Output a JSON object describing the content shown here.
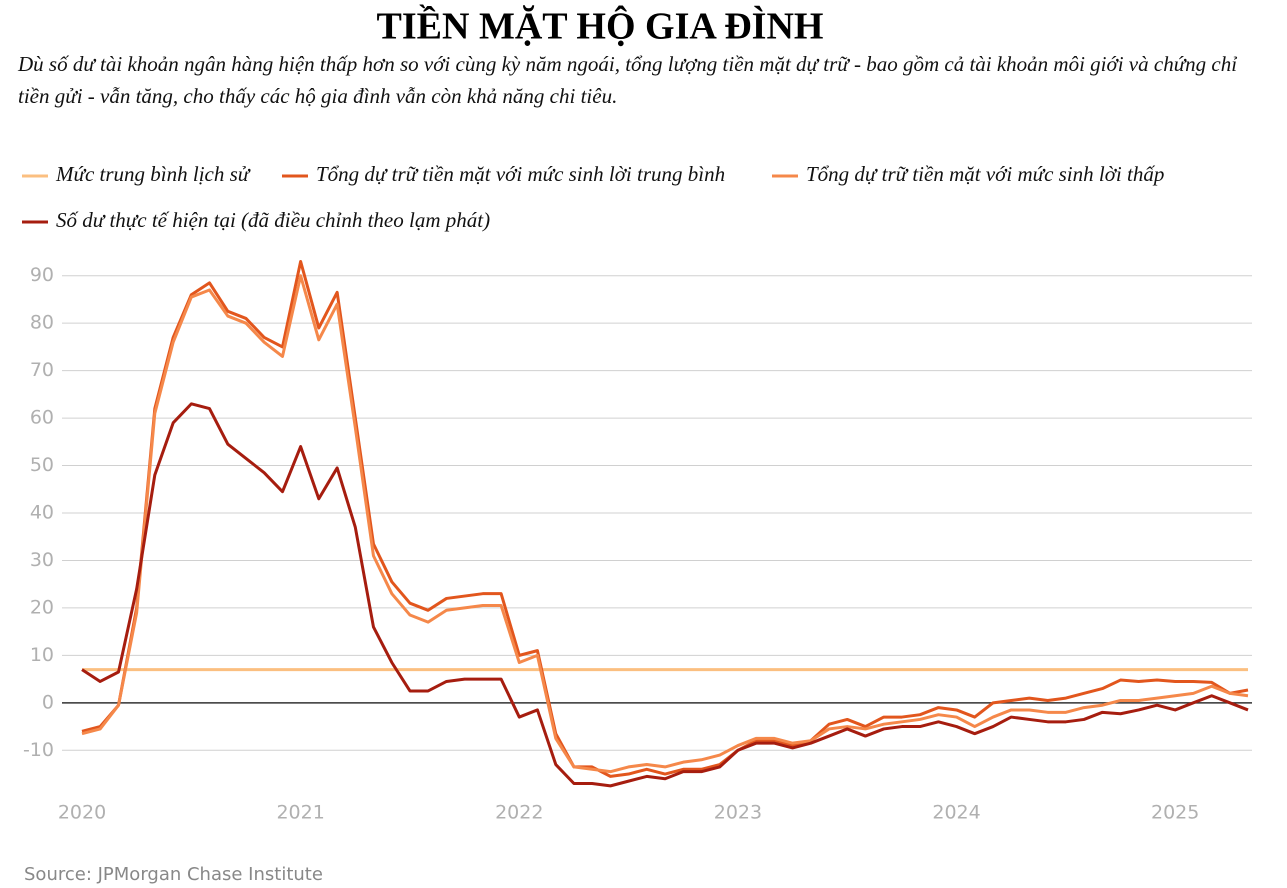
{
  "chart_data": {
    "type": "line",
    "title": "TIỀN MẶT HỘ GIA ĐÌNH",
    "subtitle": "Dù số dư tài khoản ngân hàng hiện thấp hơn so với cùng kỳ năm ngoái, tổng lượng tiền mặt dự trữ - bao gồm cả tài khoản môi giới và chứng chỉ tiền gửi - vẫn tăng, cho thấy các hộ gia đình vẫn còn khả năng chi tiêu.",
    "source": "Source: JPMorgan Chase Institute",
    "x": [
      2020,
      2020.083,
      2020.167,
      2020.25,
      2020.333,
      2020.417,
      2020.5,
      2020.583,
      2020.667,
      2020.75,
      2020.833,
      2020.917,
      2021,
      2021.083,
      2021.167,
      2021.25,
      2021.333,
      2021.417,
      2021.5,
      2021.583,
      2021.667,
      2021.75,
      2021.833,
      2021.917,
      2022,
      2022.083,
      2022.167,
      2022.25,
      2022.333,
      2022.417,
      2022.5,
      2022.583,
      2022.667,
      2022.75,
      2022.833,
      2022.917,
      2023,
      2023.083,
      2023.167,
      2023.25,
      2023.333,
      2023.417,
      2023.5,
      2023.583,
      2023.667,
      2023.75,
      2023.833,
      2023.917,
      2024,
      2024.083,
      2024.167,
      2024.25,
      2024.333,
      2024.417,
      2024.5,
      2024.583,
      2024.667,
      2024.75,
      2024.833,
      2024.917,
      2025,
      2025.083,
      2025.167,
      2025.25,
      2025.333
    ],
    "xlim": [
      2020,
      2025.333
    ],
    "xticks": [
      2020,
      2021,
      2022,
      2023,
      2024,
      2025
    ],
    "ylim": [
      -19,
      95
    ],
    "yticks": [
      -10,
      0,
      10,
      20,
      30,
      40,
      50,
      60,
      70,
      80,
      90
    ],
    "grid": true,
    "series": [
      {
        "name": "Mức trung bình lịch sử",
        "color": "#fbbf80",
        "values": [
          7,
          7,
          7,
          7,
          7,
          7,
          7,
          7,
          7,
          7,
          7,
          7,
          7,
          7,
          7,
          7,
          7,
          7,
          7,
          7,
          7,
          7,
          7,
          7,
          7,
          7,
          7,
          7,
          7,
          7,
          7,
          7,
          7,
          7,
          7,
          7,
          7,
          7,
          7,
          7,
          7,
          7,
          7,
          7,
          7,
          7,
          7,
          7,
          7,
          7,
          7,
          7,
          7,
          7,
          7,
          7,
          7,
          7,
          7,
          7,
          7,
          7,
          7,
          7,
          7
        ]
      },
      {
        "name": "Tổng dự trữ tiền mặt với mức sinh lời trung bình",
        "color": "#e2561d",
        "values": [
          -6,
          -5,
          -0.5,
          20,
          62,
          77,
          86,
          88.5,
          82.5,
          81,
          77,
          75,
          93,
          79,
          86.5,
          60,
          33.5,
          25.5,
          21,
          19.5,
          22,
          22.5,
          23,
          23,
          10,
          11,
          -6.5,
          -13.5,
          -13.5,
          -15.5,
          -15,
          -14,
          -15,
          -14,
          -14,
          -13,
          -10,
          -8,
          -8,
          -9,
          -8,
          -4.5,
          -3.5,
          -5,
          -3,
          -3,
          -2.5,
          -1,
          -1.5,
          -3,
          0,
          0.5,
          1,
          0.5,
          1,
          2,
          3,
          4.8,
          4.5,
          4.8,
          4.5,
          4.5,
          4.3,
          2,
          2.7
        ]
      },
      {
        "name": "Tổng dự trữ tiền mặt với mức sinh lời thấp",
        "color": "#f5884a",
        "values": [
          -6.5,
          -5.5,
          -0.5,
          19,
          61,
          76,
          85.5,
          87,
          81.5,
          80,
          76,
          73,
          90,
          76.5,
          84,
          58,
          31,
          23,
          18.5,
          17,
          19.5,
          20,
          20.5,
          20.5,
          8.5,
          10,
          -7.5,
          -13.5,
          -14,
          -14.5,
          -13.5,
          -13,
          -13.5,
          -12.5,
          -12,
          -11,
          -9,
          -7.5,
          -7.5,
          -8.5,
          -8,
          -5.5,
          -5,
          -5.5,
          -4.5,
          -4,
          -3.5,
          -2.5,
          -3,
          -5,
          -3,
          -1.5,
          -1.5,
          -2,
          -2,
          -1,
          -0.5,
          0.5,
          0.5,
          1,
          1.5,
          2,
          3.5,
          2,
          1.5
        ]
      },
      {
        "name": "Số dư thực tế hiện tại (đã điều chỉnh theo lạm phát)",
        "color": "#a61d0f",
        "values": [
          7,
          4.5,
          6.5,
          24,
          48,
          59,
          63,
          62,
          54.5,
          51.5,
          48.5,
          44.5,
          54,
          43,
          49.5,
          37,
          16,
          8.5,
          2.5,
          2.5,
          4.5,
          5,
          5,
          5,
          -3,
          -1.5,
          -13,
          -17,
          -17,
          -17.5,
          -16.5,
          -15.5,
          -16,
          -14.5,
          -14.5,
          -13.5,
          -10,
          -8.5,
          -8.5,
          -9.5,
          -8.5,
          -7,
          -5.5,
          -7,
          -5.5,
          -5,
          -5,
          -4,
          -5,
          -6.5,
          -5,
          -3,
          -3.5,
          -4,
          -4,
          -3.5,
          -2,
          -2.3,
          -1.5,
          -0.5,
          -1.5,
          0,
          1.5,
          0,
          -1.5
        ]
      }
    ]
  }
}
